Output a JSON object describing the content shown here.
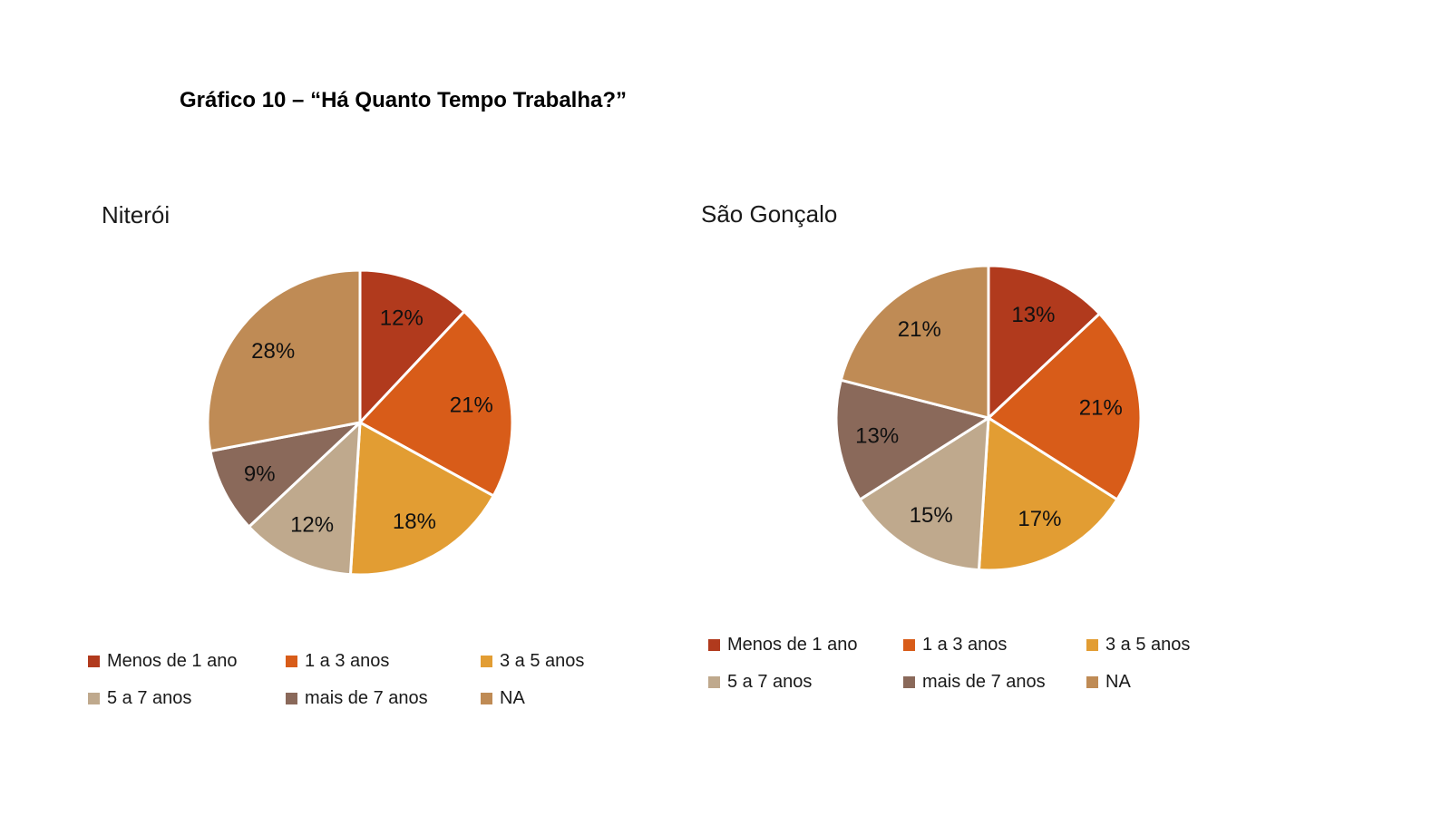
{
  "page": {
    "title": "Gráfico 10 – “Há Quanto Tempo Trabalha?”",
    "background": "#ffffff",
    "text_color": "#000000"
  },
  "chart_data": [
    {
      "type": "pie",
      "title": "Niterói",
      "categories": [
        "Menos de 1 ano",
        "1 a 3 anos",
        "3 a 5 anos",
        "5 a 7 anos",
        "mais de 7 anos",
        "NA"
      ],
      "values": [
        12,
        21,
        18,
        12,
        9,
        28
      ],
      "data_labels": [
        "12%",
        "21%",
        "18%",
        "12%",
        "9%",
        "28%"
      ],
      "colors": [
        "#B13A1D",
        "#D85C19",
        "#E29D33",
        "#BFA98D",
        "#8A695A",
        "#BF8B55"
      ],
      "start_angle_deg": 0,
      "direction": "clockwise",
      "slice_border_color": "#FFFFFF",
      "label_color": "#111111",
      "legend_position": "bottom"
    },
    {
      "type": "pie",
      "title": "São Gonçalo",
      "categories": [
        "Menos de 1 ano",
        "1 a 3 anos",
        "3 a 5 anos",
        "5 a 7 anos",
        "mais de 7 anos",
        "NA"
      ],
      "values": [
        13,
        21,
        17,
        15,
        13,
        21
      ],
      "data_labels": [
        "13%",
        "21%",
        "17%",
        "15%",
        "13%",
        "21%"
      ],
      "colors": [
        "#B13A1D",
        "#D85C19",
        "#E29D33",
        "#BFA98D",
        "#8A695A",
        "#BF8B55"
      ],
      "start_angle_deg": 0,
      "direction": "clockwise",
      "slice_border_color": "#FFFFFF",
      "label_color": "#111111",
      "legend_position": "bottom"
    }
  ]
}
